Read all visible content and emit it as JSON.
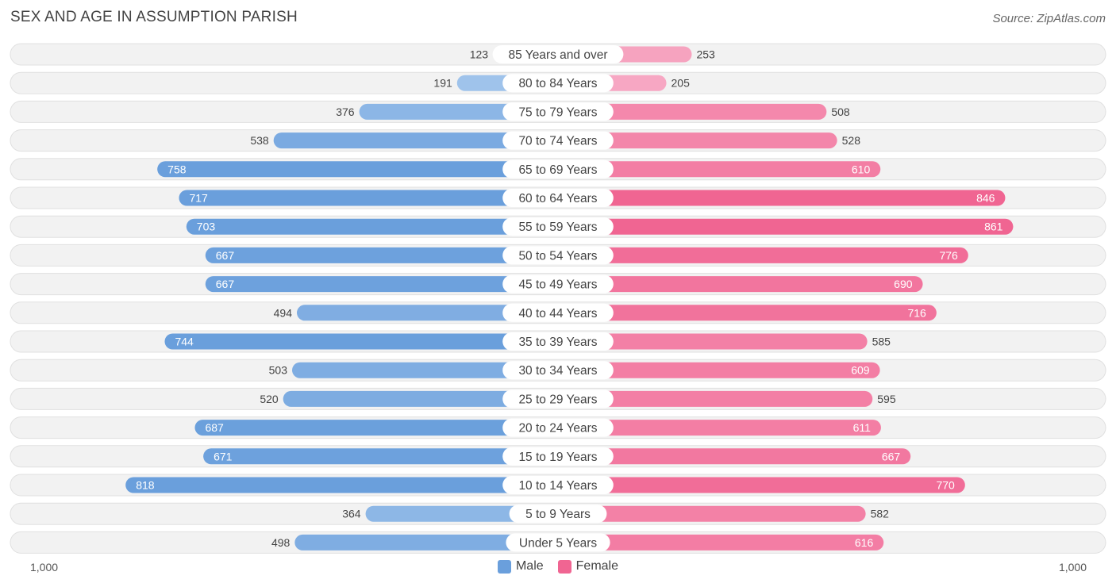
{
  "header": {
    "title": "SEX AND AGE IN ASSUMPTION PARISH",
    "source": "Source: ZipAtlas.com"
  },
  "axis": {
    "left_label": "1,000",
    "right_label": "1,000"
  },
  "legend": {
    "male_label": "Male",
    "female_label": "Female"
  },
  "colors": {
    "male_strong": "#6a9fdc",
    "male_light": "#a9c9ee",
    "female_strong": "#f06592",
    "female_light": "#f7a8c3",
    "row_bg": "#f2f2f2",
    "row_border": "#e0e0e0"
  },
  "chart_data": {
    "type": "bar",
    "orientation": "horizontal-butterfly",
    "title": "SEX AND AGE IN ASSUMPTION PARISH",
    "xlim": [
      -1000,
      1000
    ],
    "legend_position": "bottom-center",
    "categories": [
      "85 Years and over",
      "80 to 84 Years",
      "75 to 79 Years",
      "70 to 74 Years",
      "65 to 69 Years",
      "60 to 64 Years",
      "55 to 59 Years",
      "50 to 54 Years",
      "45 to 49 Years",
      "40 to 44 Years",
      "35 to 39 Years",
      "30 to 34 Years",
      "25 to 29 Years",
      "20 to 24 Years",
      "15 to 19 Years",
      "10 to 14 Years",
      "5 to 9 Years",
      "Under 5 Years"
    ],
    "series": [
      {
        "name": "Male",
        "values": [
          123,
          191,
          376,
          538,
          758,
          717,
          703,
          667,
          667,
          494,
          744,
          503,
          520,
          687,
          671,
          818,
          364,
          498
        ]
      },
      {
        "name": "Female",
        "values": [
          253,
          205,
          508,
          528,
          610,
          846,
          861,
          776,
          690,
          716,
          585,
          609,
          595,
          611,
          667,
          770,
          582,
          616
        ]
      }
    ]
  }
}
